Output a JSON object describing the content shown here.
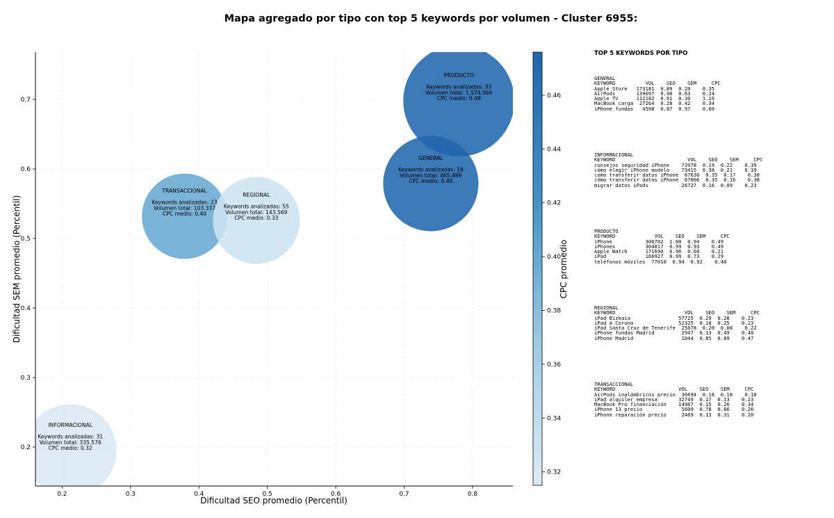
{
  "chart_data": {
    "type": "scatter",
    "title": "Mapa agregado por tipo con top 5 keywords por volumen - Cluster 6955:",
    "xlabel": "Dificultad SEO promedio (Percentil)",
    "ylabel": "Dificultad SEM promedio (Percentil)",
    "xlim": [
      0.161,
      0.859
    ],
    "ylim": [
      0.144,
      0.768
    ],
    "xticks": [
      "0.2",
      "0.3",
      "0.4",
      "0.5",
      "0.6",
      "0.7",
      "0.8"
    ],
    "yticks": [
      "0.2",
      "0.3",
      "0.4",
      "0.5",
      "0.6",
      "0.7"
    ],
    "grid": true,
    "colorbar": {
      "label": "CPC promedio",
      "range": [
        0.315,
        0.476
      ],
      "ticks": [
        "0.32",
        "0.34",
        "0.36",
        "0.38",
        "0.40",
        "0.42",
        "0.44",
        "0.46"
      ],
      "colors": [
        "#deebf7",
        "#9ecae1",
        "#4292c6",
        "#2166ac"
      ]
    },
    "points": [
      {
        "name": "PRODUCTO",
        "x": 0.78,
        "y": 0.698,
        "keywords": "Keywords analizadas: 33",
        "volume": "Volumen total: 1.574.566",
        "cpc_text": "CPC medio: 0.48",
        "cpc": 0.48,
        "volume_value": 1574566
      },
      {
        "name": "GENERAL",
        "x": 0.739,
        "y": 0.579,
        "keywords": "Keywords analizadas: 16",
        "volume": "Volumen total: 465.499",
        "cpc_text": "CPC medio: 0.48",
        "cpc": 0.48,
        "volume_value": 465499
      },
      {
        "name": "TRANSACCIONAL",
        "x": 0.379,
        "y": 0.532,
        "keywords": "Keywords analizadas: 23",
        "volume": "Volumen total: 103.337",
        "cpc_text": "CPC medio: 0.40",
        "cpc": 0.4,
        "volume_value": 103337
      },
      {
        "name": "REGIONAL",
        "x": 0.484,
        "y": 0.526,
        "keywords": "Keywords analizadas: 55",
        "volume": "Volumen total: 143.569",
        "cpc_text": "CPC medio: 0.33",
        "cpc": 0.33,
        "volume_value": 143569
      },
      {
        "name": "INFORMACIONAL",
        "x": 0.212,
        "y": 0.195,
        "keywords": "Keywords analizadas: 31",
        "volume": "Volumen total: 335.576",
        "cpc_text": "CPC medio: 0.32",
        "cpc": 0.32,
        "volume_value": 335576
      }
    ]
  },
  "panel": {
    "title": "TOP 5 KEYWORDS POR TIPO",
    "blocks": [
      {
        "text": "GENERAL\nKEYWORD          VOL    SEO    SEM     CPC\nApple Store   173181  0.89  0.20    0.35\nAirPods       139097  0.98  0.63    0.24\nApple TV      112182  0.91  0.30    1.10\nMacBook carga  27264  0.28  0.42    0.34\niPhone fundas   4598  0.87  0.97    0.60"
      },
      {
        "text": "INFORMACIONAL\nKEYWORD                        VOL    SEO    SEM     CPC\nconsejos seguridad iPhone    73978  0.19  0.22    0.39\ncómo elegir iPhone modelo    73415  0.38  0.21    0.39\ncomo transferir datos iPhone  67636  0.35  0.17    0.38\ncómo transferir datos iPhone  67006  0.35  0.16    0.38\nmigrar datos iPads           26727  0.16  0.09    0.23"
      },
      {
        "text": "PRODUCTO\nKEYWORD             VOL    SEO    SEM     CPC\niPhone           306702  1.00  0.94    0.49\niPhones          304817  0.99  0.93    0.49\nApple Watch      171690  0.96  0.60    0.21\niPad             166927  0.99  0.73    0.29\nteléfonos móviles  77010  0.94  0.92    0.48"
      },
      {
        "text": "REGIONAL\nKEYWORD                       VOL    SEO    SEM     CPC\niPad Bizkaia                57725  0.29  0.28    0.23\niPad A Coruna               52325  0.18  0.25    0.23\niPad Santa Cruz de Tenerife  25078  0.20  0.08    0.22\niPhone fundas Madrid         2947  0.13  0.49    0.48\niPhone Madrid                1044  0.85  0.89    0.47"
      },
      {
        "text": "TRANSACCIONAL\nKEYWORD                     VOL    SEO    SEM     CPC\nAirPods inalámbricos precio  36694  0.18  0.18    0.18\niPad alquiler empresa       32749  0.17  0.13    0.23\nMacBook Pro financiación    14967  0.15  0.26    0.34\niPhone 13 precio             5609  0.78  0.66    0.26\niPhone reparación precio     2469  0.13  0.31    0.20"
      }
    ]
  }
}
